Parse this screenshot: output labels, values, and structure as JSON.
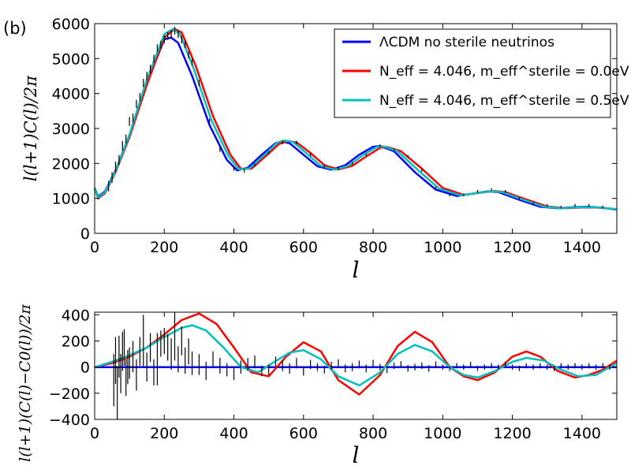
{
  "panel_label": "(b)",
  "chart_data": [
    {
      "type": "line",
      "name": "spectrum",
      "xlabel": "l",
      "ylabel": "l(l+1)C(l)/2π",
      "xlim": [
        0,
        1500
      ],
      "ylim": [
        0,
        6000
      ],
      "xticks": [
        0,
        200,
        400,
        600,
        800,
        1000,
        1200,
        1400
      ],
      "yticks": [
        0,
        1000,
        2000,
        3000,
        4000,
        5000,
        6000
      ],
      "legend_position": "top-right",
      "series": [
        {
          "name": "ΛCDM no sterile neutrinos",
          "color": "#0000ff",
          "x": [
            0,
            10,
            30,
            60,
            100,
            150,
            200,
            220,
            240,
            280,
            330,
            380,
            410,
            440,
            480,
            520,
            540,
            560,
            600,
            640,
            680,
            720,
            760,
            800,
            820,
            860,
            920,
            980,
            1040,
            1100,
            1130,
            1160,
            1220,
            1280,
            1330,
            1380,
            1420,
            1460,
            1500
          ],
          "y": [
            1300,
            1050,
            1200,
            1800,
            2800,
            4300,
            5550,
            5600,
            5450,
            4500,
            3100,
            2100,
            1800,
            1880,
            2250,
            2580,
            2620,
            2580,
            2250,
            1920,
            1820,
            1950,
            2250,
            2480,
            2500,
            2350,
            1750,
            1250,
            1070,
            1160,
            1200,
            1180,
            960,
            760,
            720,
            750,
            760,
            730,
            680
          ]
        },
        {
          "name": "N_eff = 4.046, m_eff^sterile = 0.0eV",
          "color": "#ff0000",
          "x": [
            0,
            10,
            30,
            60,
            100,
            150,
            200,
            230,
            250,
            290,
            340,
            390,
            420,
            450,
            490,
            530,
            555,
            580,
            620,
            660,
            700,
            740,
            780,
            820,
            840,
            880,
            940,
            1000,
            1060,
            1120,
            1150,
            1180,
            1240,
            1300,
            1350,
            1400,
            1440,
            1480,
            1500
          ],
          "y": [
            1300,
            1000,
            1150,
            1750,
            2750,
            4250,
            5600,
            5850,
            5750,
            4800,
            3350,
            2250,
            1850,
            1850,
            2200,
            2560,
            2640,
            2600,
            2300,
            1950,
            1830,
            1930,
            2200,
            2450,
            2470,
            2350,
            1850,
            1300,
            1100,
            1180,
            1210,
            1180,
            970,
            770,
            720,
            740,
            740,
            710,
            690
          ]
        },
        {
          "name": "N_eff = 4.046, m_eff^sterile = 0.5eV",
          "color": "#00bfbf",
          "x": [
            0,
            10,
            30,
            60,
            100,
            150,
            200,
            225,
            245,
            285,
            335,
            385,
            415,
            445,
            485,
            525,
            545,
            570,
            610,
            650,
            690,
            730,
            770,
            810,
            830,
            870,
            930,
            990,
            1050,
            1110,
            1140,
            1170,
            1230,
            1290,
            1340,
            1390,
            1430,
            1470,
            1500
          ],
          "y": [
            1300,
            1020,
            1180,
            1780,
            2820,
            4400,
            5700,
            5850,
            5700,
            4700,
            3250,
            2200,
            1830,
            1860,
            2220,
            2600,
            2660,
            2610,
            2280,
            1930,
            1820,
            1940,
            2230,
            2470,
            2490,
            2350,
            1800,
            1280,
            1090,
            1170,
            1200,
            1180,
            965,
            765,
            720,
            745,
            750,
            720,
            690
          ]
        }
      ],
      "data_points": {
        "x": [
          40,
          50,
          60,
          70,
          80,
          90,
          100,
          110,
          120,
          130,
          140,
          150,
          160,
          170,
          180,
          190,
          200,
          210,
          220,
          230,
          240,
          250,
          260,
          270,
          280,
          300,
          330,
          360,
          400,
          430,
          460,
          500,
          540,
          580,
          620,
          660,
          700,
          740,
          780,
          820,
          860,
          900,
          940,
          980,
          1020,
          1060,
          1100,
          1140,
          1180,
          1220,
          1260,
          1300,
          1340,
          1380,
          1420,
          1460
        ],
        "y": [
          1350,
          1600,
          1900,
          2100,
          2500,
          2700,
          3200,
          3300,
          3700,
          3900,
          4300,
          4500,
          4700,
          5000,
          5300,
          5400,
          5550,
          5650,
          5700,
          5800,
          5700,
          5550,
          5400,
          5100,
          4900,
          4300,
          3200,
          2400,
          1850,
          1800,
          1950,
          2300,
          2600,
          2600,
          2250,
          1900,
          1850,
          2000,
          2250,
          2500,
          2400,
          2200,
          1800,
          1300,
          1100,
          1100,
          1200,
          1250,
          1200,
          1000,
          850,
          800,
          750,
          800,
          800,
          750
        ],
        "err": [
          150,
          150,
          150,
          140,
          140,
          130,
          130,
          130,
          120,
          120,
          120,
          120,
          120,
          110,
          110,
          110,
          110,
          110,
          110,
          110,
          110,
          110,
          100,
          100,
          100,
          90,
          80,
          70,
          60,
          60,
          50,
          50,
          50,
          50,
          50,
          50,
          40,
          40,
          40,
          40,
          40,
          40,
          40,
          40,
          40,
          40,
          40,
          40,
          40,
          40,
          40,
          40,
          40,
          40,
          40,
          40
        ]
      }
    },
    {
      "type": "line",
      "name": "residuals",
      "xlabel": "l",
      "ylabel": "l(l+1)(C(l)−C0(l))/2π",
      "xlim": [
        0,
        1500
      ],
      "ylim": [
        -400,
        420
      ],
      "xticks": [
        0,
        200,
        400,
        600,
        800,
        1000,
        1200,
        1400
      ],
      "yticks": [
        -400,
        -200,
        0,
        200,
        400
      ],
      "series": [
        {
          "name": "ΛCDM no sterile neutrinos",
          "color": "#0000ff",
          "x": [
            0,
            1500
          ],
          "y": [
            0,
            0
          ]
        },
        {
          "name": "N_eff = 4.046, m_eff^sterile = 0.0eV",
          "color": "#ff0000",
          "x": [
            0,
            50,
            100,
            150,
            200,
            250,
            300,
            350,
            400,
            450,
            500,
            550,
            600,
            650,
            700,
            760,
            820,
            870,
            920,
            970,
            1020,
            1060,
            1100,
            1150,
            1200,
            1240,
            1280,
            1330,
            1380,
            1420,
            1460,
            1500
          ],
          "y": [
            0,
            30,
            80,
            150,
            250,
            360,
            410,
            330,
            150,
            -40,
            -70,
            80,
            190,
            120,
            -100,
            -210,
            -60,
            160,
            270,
            190,
            0,
            -70,
            -100,
            -40,
            80,
            120,
            80,
            -30,
            -80,
            -60,
            -20,
            50
          ]
        },
        {
          "name": "N_eff = 4.046, m_eff^sterile = 0.5eV",
          "color": "#00bfbf",
          "x": [
            0,
            50,
            100,
            150,
            200,
            250,
            280,
            320,
            370,
            420,
            470,
            510,
            560,
            600,
            650,
            700,
            760,
            820,
            870,
            920,
            970,
            1020,
            1060,
            1100,
            1150,
            1200,
            1240,
            1290,
            1340,
            1390,
            1440,
            1500
          ],
          "y": [
            0,
            40,
            90,
            150,
            230,
            300,
            320,
            280,
            150,
            0,
            -40,
            30,
            110,
            130,
            60,
            -70,
            -140,
            -40,
            100,
            170,
            120,
            0,
            -60,
            -80,
            -30,
            40,
            70,
            50,
            -20,
            -70,
            -60,
            30
          ]
        }
      ],
      "data_points": {
        "x": [
          55,
          60,
          65,
          70,
          75,
          80,
          85,
          90,
          95,
          100,
          110,
          120,
          130,
          140,
          150,
          160,
          170,
          180,
          190,
          200,
          210,
          220,
          230,
          240,
          250,
          260,
          270,
          280,
          300,
          320,
          340,
          360,
          380,
          400,
          420,
          440,
          460,
          480,
          500,
          520,
          540,
          560,
          580,
          600,
          620,
          640,
          660,
          680,
          700,
          720,
          740,
          760,
          780,
          800,
          820,
          840,
          860,
          880,
          900,
          920,
          940,
          960,
          980,
          1000,
          1020,
          1040,
          1060,
          1080,
          1100,
          1120,
          1140,
          1160,
          1180,
          1200,
          1220,
          1240,
          1260,
          1280,
          1300,
          1320,
          1340,
          1360,
          1380,
          1400,
          1420,
          1440,
          1460,
          1480
        ],
        "y": [
          -100,
          50,
          -200,
          80,
          -50,
          120,
          150,
          -80,
          0,
          30,
          80,
          -60,
          120,
          200,
          0,
          150,
          -40,
          60,
          180,
          200,
          150,
          100,
          250,
          60,
          200,
          50,
          120,
          30,
          20,
          -30,
          60,
          10,
          -20,
          -50,
          0,
          20,
          40,
          -30,
          -20,
          40,
          10,
          -10,
          30,
          -30,
          20,
          0,
          -20,
          10,
          30,
          -10,
          0,
          20,
          -10,
          30,
          0,
          -20,
          10,
          20,
          -10,
          0,
          10,
          -10,
          20,
          0,
          -10,
          10,
          0,
          20,
          -10,
          0,
          10,
          0,
          20,
          0,
          -10,
          10,
          0,
          10,
          0,
          -10,
          10,
          0,
          10,
          0,
          10,
          0,
          10,
          0
        ],
        "err": [
          200,
          180,
          200,
          160,
          150,
          150,
          140,
          140,
          130,
          120,
          120,
          120,
          110,
          200,
          110,
          110,
          100,
          200,
          100,
          100,
          100,
          120,
          200,
          100,
          110,
          100,
          100,
          90,
          80,
          70,
          60,
          60,
          50,
          50,
          50,
          50,
          50,
          40,
          40,
          40,
          40,
          40,
          40,
          35,
          35,
          30,
          30,
          30,
          30,
          30,
          30,
          30,
          30,
          25,
          25,
          25,
          25,
          25,
          25,
          25,
          25,
          25,
          25,
          20,
          20,
          20,
          20,
          20,
          20,
          20,
          20,
          20,
          20,
          20,
          20,
          20,
          20,
          20,
          20,
          20,
          20,
          20,
          20,
          20,
          20,
          20,
          20,
          20
        ]
      }
    }
  ]
}
